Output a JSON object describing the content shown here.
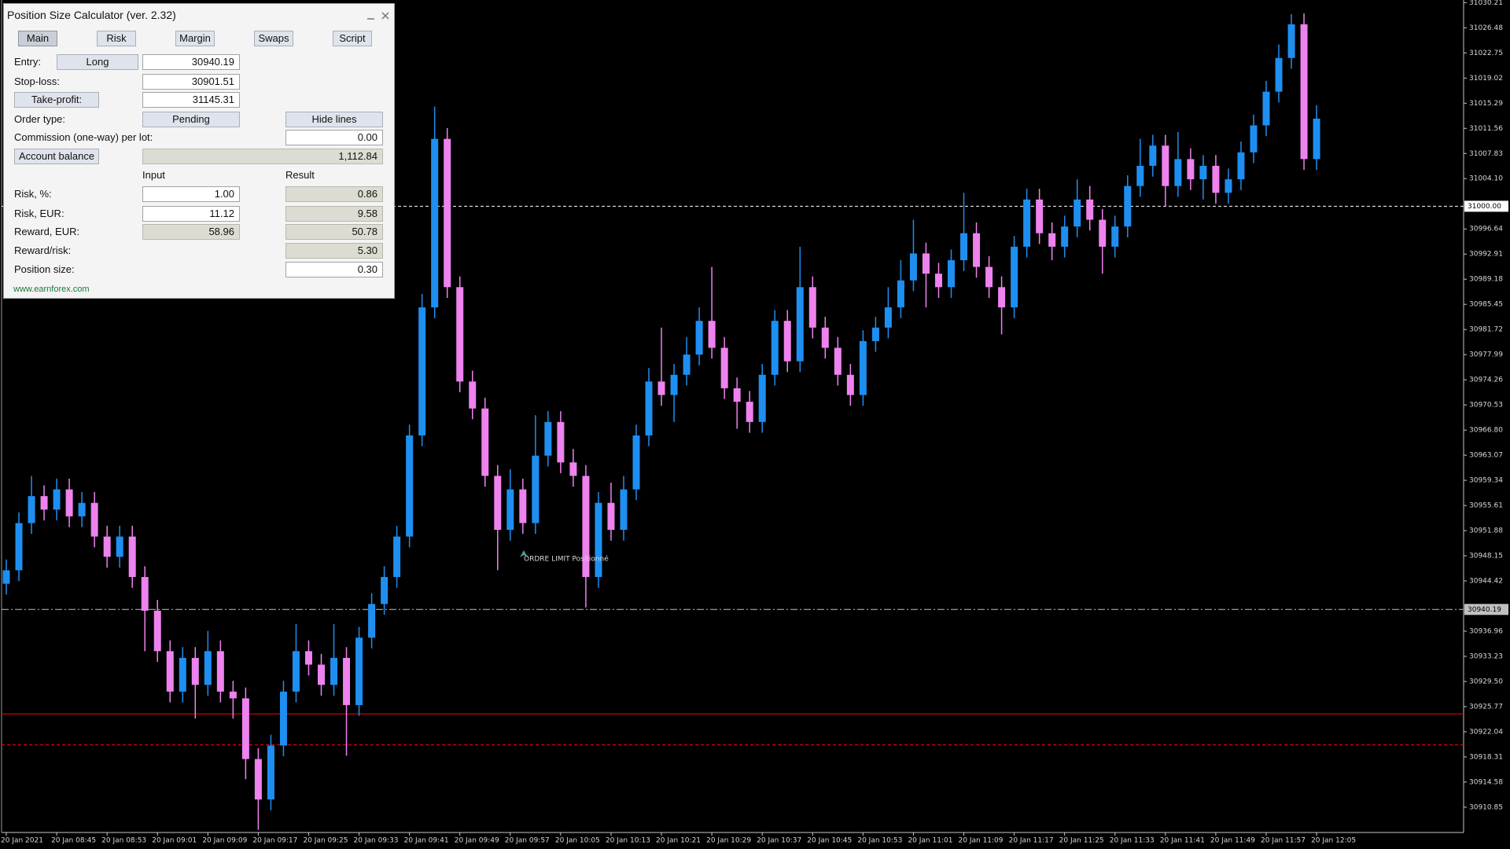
{
  "chart_data": {
    "type": "candlestick",
    "categories": [
      "20 Jan 2021",
      null,
      null,
      null,
      "20 Jan 08:45",
      null,
      null,
      null,
      "20 Jan 08:53",
      null,
      null,
      null,
      "20 Jan 09:01",
      null,
      null,
      null,
      "20 Jan 09:09",
      null,
      null,
      null,
      "20 Jan 09:17",
      null,
      null,
      null,
      "20 Jan 09:25",
      null,
      null,
      null,
      "20 Jan 09:33",
      null,
      null,
      null,
      "20 Jan 09:41",
      null,
      null,
      null,
      "20 Jan 09:49",
      null,
      null,
      null,
      "20 Jan 09:57",
      null,
      null,
      null,
      "20 Jan 10:05",
      null,
      null,
      null,
      "20 Jan 10:13",
      null,
      null,
      null,
      "20 Jan 10:21",
      null,
      null,
      null,
      "20 Jan 10:29",
      null,
      null,
      null,
      "20 Jan 10:37",
      null,
      null,
      null,
      "20 Jan 10:45",
      null,
      null,
      null,
      "20 Jan 10:53",
      null,
      null,
      null,
      "20 Jan 11:01",
      null,
      null,
      null,
      "20 Jan 11:09",
      null,
      null,
      null,
      "20 Jan 11:17",
      null,
      null,
      null,
      "20 Jan 11:25",
      null,
      null,
      null,
      "20 Jan 11:33",
      null,
      null,
      null,
      "20 Jan 11:41",
      null,
      null,
      null,
      "20 Jan 11:49",
      null,
      null,
      null,
      "20 Jan 11:57",
      null,
      null,
      null,
      "20 Jan 12:05"
    ],
    "open": [
      30944,
      30946,
      30953,
      30957,
      30955,
      30958,
      30954,
      30956,
      30951,
      30948,
      30951,
      30945,
      30940,
      30934,
      30928,
      30933,
      30929,
      30934,
      30928,
      30927,
      30918,
      30912,
      30920,
      30928,
      30934,
      30932,
      30929,
      30933,
      30926,
      30936,
      30941,
      30945,
      30951,
      30966,
      30985,
      31010,
      30988,
      30974,
      30970,
      30960,
      30952,
      30958,
      30953,
      30963,
      30968,
      30962,
      30960,
      30945,
      30956,
      30952,
      30958,
      30966,
      30974,
      30972,
      30975,
      30978,
      30983,
      30979,
      30973,
      30971,
      30968,
      30975,
      30983,
      30977,
      30988,
      30982,
      30979,
      30975,
      30972,
      30980,
      30982,
      30985,
      30989,
      30993,
      30990,
      30988,
      30992,
      30996,
      30991,
      30988,
      30985,
      30994,
      31001,
      30996,
      30994,
      30997,
      31001,
      30998,
      30994,
      30997,
      31003,
      31006,
      31009,
      31003,
      31007,
      31004,
      31006,
      31002,
      31004,
      31008,
      31012,
      31017,
      31022,
      31027,
      31007
    ],
    "high": [
      30947.6,
      30954.6,
      30960,
      30958.6,
      30959.6,
      30959.6,
      30957.6,
      30957.6,
      30952.6,
      30952.6,
      30952.6,
      30946.6,
      30941.6,
      30935.6,
      30934.6,
      30934.6,
      30937,
      30935.6,
      30929.6,
      30928.6,
      30919.6,
      30921.6,
      30929.6,
      30938,
      30935.6,
      30933.6,
      30938,
      30934.6,
      30937.6,
      30942.6,
      30946.6,
      30952.6,
      30967.6,
      30987,
      31014.8,
      31011.6,
      30989.6,
      30975.6,
      30971.6,
      30961.6,
      30961,
      30959.6,
      30969,
      30969.6,
      30969.6,
      30964,
      30961.6,
      30957.6,
      30959,
      30960,
      30967.6,
      30976,
      30982,
      30976.6,
      30980.6,
      30985,
      30991,
      30980.6,
      30974.6,
      30972.6,
      30976.6,
      30984.6,
      30984.6,
      30994,
      30989.6,
      30983.6,
      30980.6,
      30976.6,
      30981.6,
      30983.6,
      30988,
      30992,
      30998,
      30994.6,
      30991.6,
      30993.6,
      31002,
      30997.6,
      30992.6,
      30989.6,
      30995.6,
      31002.6,
      31002.6,
      30997.6,
      30998.6,
      31004,
      31003,
      30999.6,
      30998.6,
      31004.6,
      31010,
      31010.6,
      31010.6,
      31011,
      31008.6,
      31007.6,
      31007.6,
      31005.6,
      31009.6,
      31013.6,
      31018.6,
      31024,
      31028.5,
      31028.6,
      31015
    ],
    "low": [
      30942.4,
      30944.4,
      30951.4,
      30953.4,
      30953.4,
      30952.4,
      30952.4,
      30949.4,
      30946.4,
      30946.4,
      30943.4,
      30934,
      30932.4,
      30926.4,
      30926.4,
      30924,
      30927.4,
      30926.4,
      30924,
      30915,
      30907.5,
      30910.4,
      30918.4,
      30926.4,
      30930.4,
      30927.4,
      30927.4,
      30918.5,
      30924.4,
      30934.4,
      30939.4,
      30943.4,
      30949.4,
      30964.4,
      30983.4,
      30986.4,
      30972.4,
      30968.4,
      30958.4,
      30946,
      30950.4,
      30951.4,
      30951.4,
      30961.4,
      30960.4,
      30958.4,
      30940.5,
      30943.4,
      30950.4,
      30950.4,
      30956.4,
      30964.4,
      30970.4,
      30968,
      30973.4,
      30976.4,
      30977.4,
      30971.4,
      30967,
      30966.4,
      30966.4,
      30973.4,
      30975.4,
      30975.4,
      30980.4,
      30977.4,
      30973.4,
      30970.4,
      30970.4,
      30978.4,
      30980.4,
      30983.4,
      30987.4,
      30985,
      30986.4,
      30986.4,
      30990.4,
      30989.4,
      30986.4,
      30981,
      30983.4,
      30992.4,
      30994.4,
      30992,
      30992.4,
      30995.4,
      30996.4,
      30990,
      30992.4,
      30995.4,
      31001.4,
      31004.4,
      31000,
      31001.4,
      31002.4,
      31001,
      31000.4,
      31000.4,
      31002.4,
      31006.4,
      31010.4,
      31015.4,
      31020.4,
      31005.4,
      31005.4
    ],
    "close": [
      30946,
      30953,
      30957,
      30955,
      30958,
      30954,
      30956,
      30951,
      30948,
      30951,
      30945,
      30940,
      30934,
      30928,
      30933,
      30929,
      30934,
      30928,
      30927,
      30918,
      30912,
      30920,
      30928,
      30934,
      30932,
      30929,
      30933,
      30926,
      30936,
      30941,
      30945,
      30951,
      30966,
      30985,
      31010,
      30988,
      30974,
      30970,
      30960,
      30952,
      30958,
      30953,
      30963,
      30968,
      30962,
      30960,
      30945,
      30956,
      30952,
      30958,
      30966,
      30974,
      30972,
      30975,
      30978,
      30983,
      30979,
      30973,
      30971,
      30968,
      30975,
      30983,
      30977,
      30988,
      30982,
      30979,
      30975,
      30972,
      30980,
      30982,
      30985,
      30989,
      30993,
      30990,
      30988,
      30992,
      30996,
      30991,
      30988,
      30985,
      30994,
      31001,
      30996,
      30994,
      30997,
      31001,
      30998,
      30994,
      30997,
      31003,
      31006,
      31009,
      31003,
      31007,
      31004,
      31006,
      31002,
      31004,
      31008,
      31012,
      31017,
      31022,
      31027,
      31007,
      31013
    ],
    "up_color": "#1e8ff0",
    "down_color": "#ee82ee",
    "ylim": [
      30907.1,
      31030.6
    ],
    "yticks": [
      31030.21,
      31026.48,
      31022.75,
      31019.02,
      31015.29,
      31011.56,
      31007.83,
      {
        "value": 31004.1,
        "label": "31004.10"
      },
      30996.64,
      30992.91,
      30989.18,
      30985.45,
      30981.72,
      30977.99,
      30974.26,
      30970.53,
      {
        "value": 30966.8,
        "label": "30966.80"
      },
      30963.07,
      30959.34,
      30955.61,
      30951.88,
      30948.15,
      30944.42,
      30936.96,
      30933.23,
      {
        "value": 30929.5,
        "label": "30929.50"
      },
      30925.77,
      30922.04,
      30918.31,
      30914.58,
      30910.85
    ],
    "levels": [
      {
        "value": 31000,
        "label": "31000.00",
        "color": "#ffffff",
        "style": "dashed"
      },
      {
        "value": 30940.19,
        "label": "30940.19",
        "color": "#c0c0c0",
        "style": "dashdot"
      },
      {
        "value": 30924.7,
        "color": "#ff0000",
        "style": "solid"
      },
      {
        "value": 30920.1,
        "color": "#ff0000",
        "style": "dashed"
      }
    ],
    "annotation": "ORDRE LIMIT Positionné"
  },
  "panel": {
    "title": "Position Size Calculator (ver. 2.32)",
    "tabs": [
      "Main",
      "Risk",
      "Margin",
      "Swaps",
      "Script"
    ],
    "entry": {
      "label": "Entry:",
      "direction": "Long",
      "value": "30940.19"
    },
    "stop_loss": {
      "label": "Stop-loss:",
      "value": "30901.51"
    },
    "take_profit": {
      "label": "Take-profit:",
      "value": "31145.31"
    },
    "order_type": {
      "label": "Order type:",
      "value": "Pending",
      "lines_button": "Hide lines"
    },
    "commission": {
      "label": "Commission (one-way) per lot:",
      "value": "0.00"
    },
    "account_balance": {
      "label": "Account balance",
      "value": "1,112.84"
    },
    "columns": [
      "Input",
      "Result"
    ],
    "rows": [
      {
        "label": "Risk, %:",
        "input": "1.00",
        "result": "0.86"
      },
      {
        "label": "Risk, EUR:",
        "input": "11.12",
        "result": "9.58"
      },
      {
        "label": "Reward, EUR:",
        "input": "58.96",
        "result": "50.78"
      },
      {
        "label": "Reward/risk:",
        "result": "5.30"
      },
      {
        "label": "Position size:",
        "result": "0.30"
      }
    ],
    "link": "www.earnforex.com"
  }
}
